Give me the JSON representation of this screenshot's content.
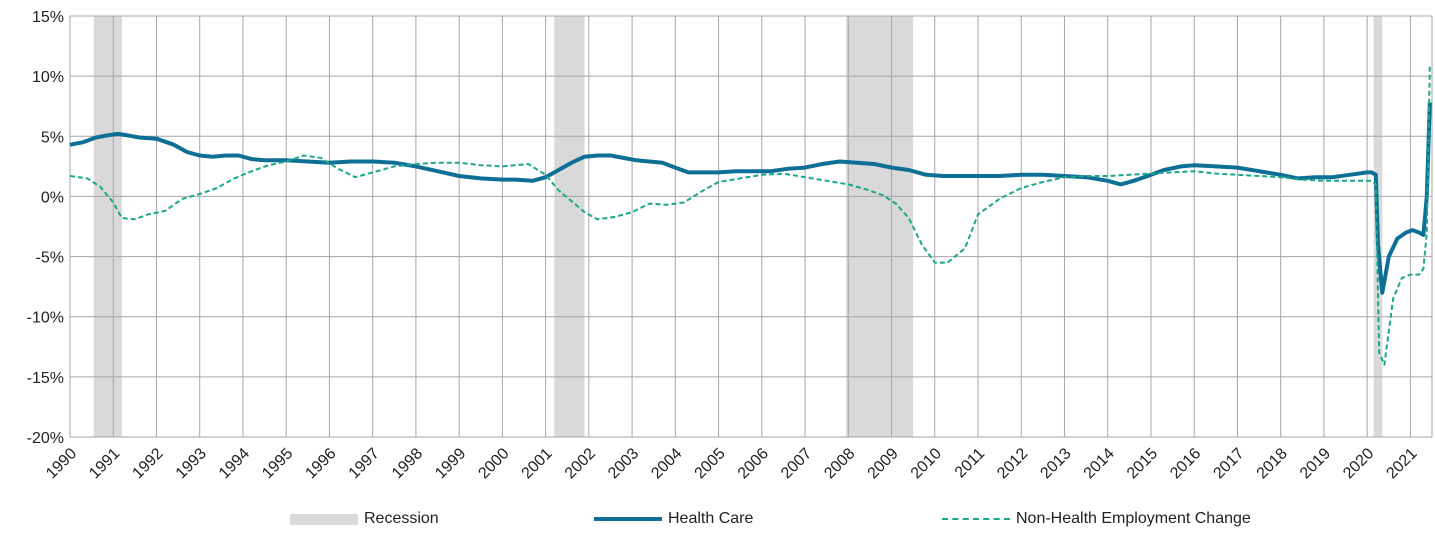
{
  "chart_data": {
    "type": "line",
    "title": "",
    "xlabel": "",
    "ylabel": "",
    "x_tick_labels": [
      "1990",
      "1991",
      "1992",
      "1993",
      "1994",
      "1995",
      "1996",
      "1997",
      "1998",
      "1999",
      "2000",
      "2001",
      "2002",
      "2003",
      "2004",
      "2005",
      "2006",
      "2007",
      "2008",
      "2009",
      "2010",
      "2011",
      "2012",
      "2013",
      "2014",
      "2015",
      "2016",
      "2017",
      "2018",
      "2019",
      "2020",
      "2021"
    ],
    "y_tick_labels": [
      "15%",
      "10%",
      "5%",
      "0%",
      "-5%",
      "-10%",
      "-15%",
      "-20%"
    ],
    "y_ticks": [
      15,
      10,
      5,
      0,
      -5,
      -10,
      -15,
      -20
    ],
    "xlim": [
      1990,
      2021.5
    ],
    "ylim": [
      -20,
      15
    ],
    "grid": true,
    "legend_position": "bottom",
    "colors": {
      "recession": "#d9d9d9",
      "health_care": "#0e6f96",
      "non_health": "#1aa88a",
      "grid": "#a6a6a6"
    },
    "recessions": [
      [
        1990.55,
        1991.2
      ],
      [
        2001.2,
        2001.9
      ],
      [
        2007.95,
        2009.5
      ],
      [
        2020.15,
        2020.35
      ]
    ],
    "series": [
      {
        "name": "Health Care",
        "style": "solid",
        "x": [
          1990,
          1990.3,
          1990.6,
          1990.9,
          1991.1,
          1991.3,
          1991.6,
          1992,
          1992.4,
          1992.7,
          1993,
          1993.3,
          1993.6,
          1993.9,
          1994.2,
          1994.5,
          1995,
          1995.5,
          1996,
          1996.5,
          1997,
          1997.5,
          1998,
          1998.5,
          1999,
          1999.5,
          2000,
          2000.3,
          2000.7,
          2001,
          2001.3,
          2001.6,
          2001.9,
          2002.2,
          2002.5,
          2002.8,
          2003.1,
          2003.4,
          2003.7,
          2004,
          2004.3,
          2004.6,
          2005,
          2005.4,
          2005.8,
          2006.2,
          2006.6,
          2007,
          2007.4,
          2007.8,
          2008.2,
          2008.6,
          2009,
          2009.4,
          2009.8,
          2010.2,
          2010.6,
          2011,
          2011.5,
          2012,
          2012.5,
          2013,
          2013.5,
          2014,
          2014.3,
          2014.6,
          2015,
          2015.3,
          2015.7,
          2016,
          2016.5,
          2017,
          2017.5,
          2018,
          2018.4,
          2018.8,
          2019.2,
          2019.6,
          2020,
          2020.1,
          2020.2,
          2020.25,
          2020.35,
          2020.5,
          2020.7,
          2020.9,
          2021.05,
          2021.2,
          2021.3,
          2021.38,
          2021.45
        ],
        "y": [
          4.3,
          4.5,
          4.9,
          5.1,
          5.2,
          5.1,
          4.9,
          4.8,
          4.3,
          3.7,
          3.4,
          3.3,
          3.4,
          3.4,
          3.1,
          3.0,
          3.0,
          2.9,
          2.8,
          2.9,
          2.9,
          2.8,
          2.5,
          2.1,
          1.7,
          1.5,
          1.4,
          1.4,
          1.3,
          1.6,
          2.2,
          2.8,
          3.3,
          3.4,
          3.4,
          3.2,
          3.0,
          2.9,
          2.8,
          2.4,
          2.0,
          2.0,
          2.0,
          2.1,
          2.1,
          2.1,
          2.3,
          2.4,
          2.7,
          2.9,
          2.8,
          2.7,
          2.4,
          2.2,
          1.8,
          1.7,
          1.7,
          1.7,
          1.7,
          1.8,
          1.8,
          1.7,
          1.6,
          1.3,
          1.0,
          1.3,
          1.8,
          2.2,
          2.5,
          2.6,
          2.5,
          2.4,
          2.1,
          1.8,
          1.5,
          1.6,
          1.6,
          1.8,
          2.0,
          2.0,
          1.8,
          -4.0,
          -8.0,
          -5.0,
          -3.5,
          -3.0,
          -2.8,
          -3.0,
          -3.2,
          0.0,
          7.8
        ]
      },
      {
        "name": "Non-Health Employment Change",
        "style": "dashed",
        "x": [
          1990,
          1990.4,
          1990.7,
          1991,
          1991.2,
          1991.5,
          1991.8,
          1992.2,
          1992.6,
          1993,
          1993.4,
          1993.8,
          1994.2,
          1994.6,
          1995,
          1995.4,
          1995.8,
          1996.2,
          1996.6,
          1997,
          1997.5,
          1998,
          1998.5,
          1999,
          1999.5,
          2000,
          2000.3,
          2000.6,
          2001,
          2001.3,
          2001.6,
          2001.9,
          2002.2,
          2002.6,
          2003,
          2003.4,
          2003.8,
          2004.2,
          2004.6,
          2005,
          2005.5,
          2006,
          2006.5,
          2007,
          2007.5,
          2008,
          2008.4,
          2008.8,
          2009.1,
          2009.4,
          2009.7,
          2010,
          2010.3,
          2010.7,
          2011,
          2011.5,
          2012,
          2012.5,
          2013,
          2013.5,
          2014,
          2014.5,
          2015,
          2015.5,
          2016,
          2016.5,
          2017,
          2017.5,
          2018,
          2018.5,
          2019,
          2019.5,
          2020,
          2020.1,
          2020.2,
          2020.28,
          2020.4,
          2020.6,
          2020.8,
          2021,
          2021.2,
          2021.3,
          2021.38,
          2021.45
        ],
        "y": [
          1.7,
          1.5,
          0.8,
          -0.5,
          -1.8,
          -1.9,
          -1.5,
          -1.2,
          -0.2,
          0.2,
          0.7,
          1.5,
          2.1,
          2.6,
          2.9,
          3.4,
          3.2,
          2.3,
          1.6,
          2.0,
          2.5,
          2.7,
          2.8,
          2.8,
          2.6,
          2.5,
          2.6,
          2.7,
          1.8,
          0.5,
          -0.4,
          -1.3,
          -1.9,
          -1.7,
          -1.3,
          -0.6,
          -0.7,
          -0.5,
          0.4,
          1.2,
          1.5,
          1.8,
          1.9,
          1.6,
          1.3,
          1.0,
          0.6,
          0.1,
          -0.6,
          -1.8,
          -4.0,
          -5.5,
          -5.5,
          -4.3,
          -1.5,
          -0.2,
          0.7,
          1.2,
          1.6,
          1.7,
          1.7,
          1.8,
          1.9,
          2.0,
          2.1,
          1.9,
          1.8,
          1.7,
          1.6,
          1.4,
          1.3,
          1.3,
          1.3,
          1.3,
          1.0,
          -13.0,
          -14.0,
          -8.5,
          -6.8,
          -6.5,
          -6.5,
          -6.0,
          -3.0,
          10.8
        ]
      }
    ],
    "legend": [
      {
        "label": "Recession",
        "kind": "recession"
      },
      {
        "label": "Health Care",
        "kind": "health_care"
      },
      {
        "label": "Non-Health Employment Change",
        "kind": "non_health"
      }
    ]
  }
}
